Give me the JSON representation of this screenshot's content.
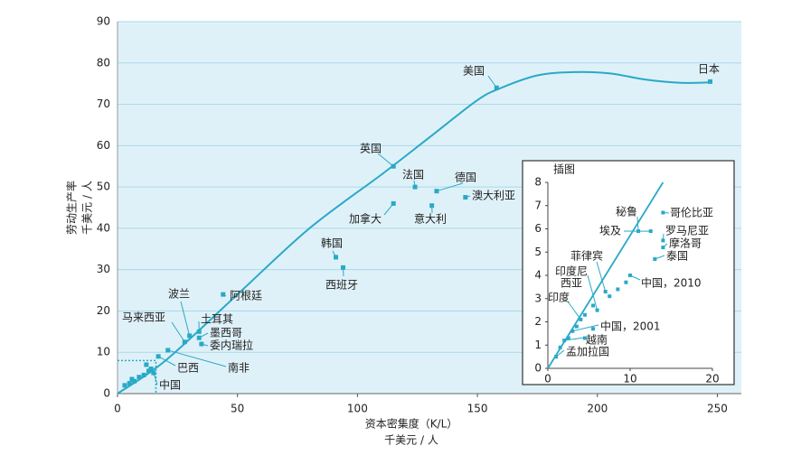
{
  "chart_data": [
    {
      "type": "scatter",
      "xlabel": "资本密集度（K/L）",
      "xunit": "千美元 / 人",
      "ylabel": "劳动生产率",
      "yunit": "千美元 / 人",
      "xlim": [
        0,
        260
      ],
      "ylim": [
        0,
        90
      ],
      "xticks": [
        0,
        50,
        100,
        150,
        200,
        250
      ],
      "yticks": [
        0,
        10,
        20,
        30,
        40,
        50,
        60,
        70,
        80,
        90
      ],
      "grid": "horizontal",
      "colors": {
        "plot_bg": "#dff1f8",
        "line": "#29a9c7",
        "point": "#29a9c7",
        "grid": "#a9d9ea"
      },
      "trend_curve": [
        [
          0,
          0
        ],
        [
          20,
          8
        ],
        [
          50,
          24
        ],
        [
          80,
          40
        ],
        [
          110,
          53
        ],
        [
          130,
          62
        ],
        [
          150,
          71
        ],
        [
          160,
          74
        ],
        [
          175,
          77
        ],
        [
          190,
          77.8
        ],
        [
          205,
          77.5
        ],
        [
          220,
          76
        ],
        [
          235,
          75.2
        ],
        [
          247,
          75.3
        ]
      ],
      "reference_lines": {
        "x": 16,
        "y": 8
      },
      "points": [
        {
          "label": "日本",
          "x": 247,
          "y": 75.5
        },
        {
          "label": "美国",
          "x": 158,
          "y": 74
        },
        {
          "label": "英国",
          "x": 115,
          "y": 55
        },
        {
          "label": "法国",
          "x": 124,
          "y": 50
        },
        {
          "label": "德国",
          "x": 133,
          "y": 49
        },
        {
          "label": "澳大利亚",
          "x": 145,
          "y": 47.5
        },
        {
          "label": "加拿大",
          "x": 115,
          "y": 46
        },
        {
          "label": "意大利",
          "x": 131,
          "y": 45.5
        },
        {
          "label": "韩国",
          "x": 91,
          "y": 33
        },
        {
          "label": "西班牙",
          "x": 94,
          "y": 30.5
        },
        {
          "label": "阿根廷",
          "x": 44,
          "y": 24
        },
        {
          "label": "波兰",
          "x": 30,
          "y": 14
        },
        {
          "label": "马来西亚",
          "x": 28,
          "y": 12.5
        },
        {
          "label": "土耳其",
          "x": 34,
          "y": 15
        },
        {
          "label": "墨西哥",
          "x": 34,
          "y": 13.5
        },
        {
          "label": "委内瑞拉",
          "x": 35,
          "y": 12
        },
        {
          "label": "巴西",
          "x": 17,
          "y": 9
        },
        {
          "label": "南非",
          "x": 21,
          "y": 10.5
        },
        {
          "label": "中国",
          "x": 15,
          "y": 5
        },
        {
          "label": "",
          "x": 3,
          "y": 2
        },
        {
          "label": "",
          "x": 5,
          "y": 2.5
        },
        {
          "label": "",
          "x": 7,
          "y": 3
        },
        {
          "label": "",
          "x": 9,
          "y": 4
        },
        {
          "label": "",
          "x": 11,
          "y": 4.5
        },
        {
          "label": "",
          "x": 13,
          "y": 5.5
        },
        {
          "label": "",
          "x": 14,
          "y": 6
        },
        {
          "label": "",
          "x": 12,
          "y": 7
        },
        {
          "label": "",
          "x": 6,
          "y": 3.5
        }
      ]
    },
    {
      "type": "scatter",
      "title": "插图",
      "xlim": [
        0,
        20
      ],
      "ylim": [
        0,
        8
      ],
      "xticks": [
        0,
        10,
        20
      ],
      "yticks": [
        0,
        1,
        2,
        3,
        4,
        5,
        6,
        7,
        8
      ],
      "trend_line": [
        [
          0,
          0
        ],
        [
          14,
          8
        ]
      ],
      "points": [
        {
          "label": "哥伦比亚",
          "x": 14,
          "y": 6.7
        },
        {
          "label": "秘鲁",
          "x": 11,
          "y": 5.9
        },
        {
          "label": "埃及",
          "x": 12.5,
          "y": 5.9
        },
        {
          "label": "罗马尼亚",
          "x": 14,
          "y": 5.5
        },
        {
          "label": "摩洛哥",
          "x": 14,
          "y": 5.2
        },
        {
          "label": "泰国",
          "x": 13,
          "y": 4.7
        },
        {
          "label": "中国，2010",
          "x": 10,
          "y": 4
        },
        {
          "label": "菲律宾",
          "x": 7,
          "y": 3.3
        },
        {
          "label": "印度尼西亚",
          "x": 6,
          "y": 2.5
        },
        {
          "label": "印度",
          "x": 4,
          "y": 2.1
        },
        {
          "label": "中国，2001",
          "x": 3,
          "y": 1.6
        },
        {
          "label": "越南",
          "x": 2,
          "y": 1.2
        },
        {
          "label": "孟加拉国",
          "x": 1,
          "y": 0.5
        },
        {
          "label": "",
          "x": 1.5,
          "y": 0.9
        },
        {
          "label": "",
          "x": 2.5,
          "y": 1.3
        },
        {
          "label": "",
          "x": 3.5,
          "y": 1.8
        },
        {
          "label": "",
          "x": 4.5,
          "y": 2.3
        },
        {
          "label": "",
          "x": 5.5,
          "y": 2.7
        },
        {
          "label": "",
          "x": 7.5,
          "y": 3.1
        },
        {
          "label": "",
          "x": 8.5,
          "y": 3.4
        },
        {
          "label": "",
          "x": 9.5,
          "y": 3.7
        },
        {
          "label": "",
          "x": 4.5,
          "y": 1.3
        },
        {
          "label": "",
          "x": 5.5,
          "y": 1.7
        }
      ]
    }
  ]
}
